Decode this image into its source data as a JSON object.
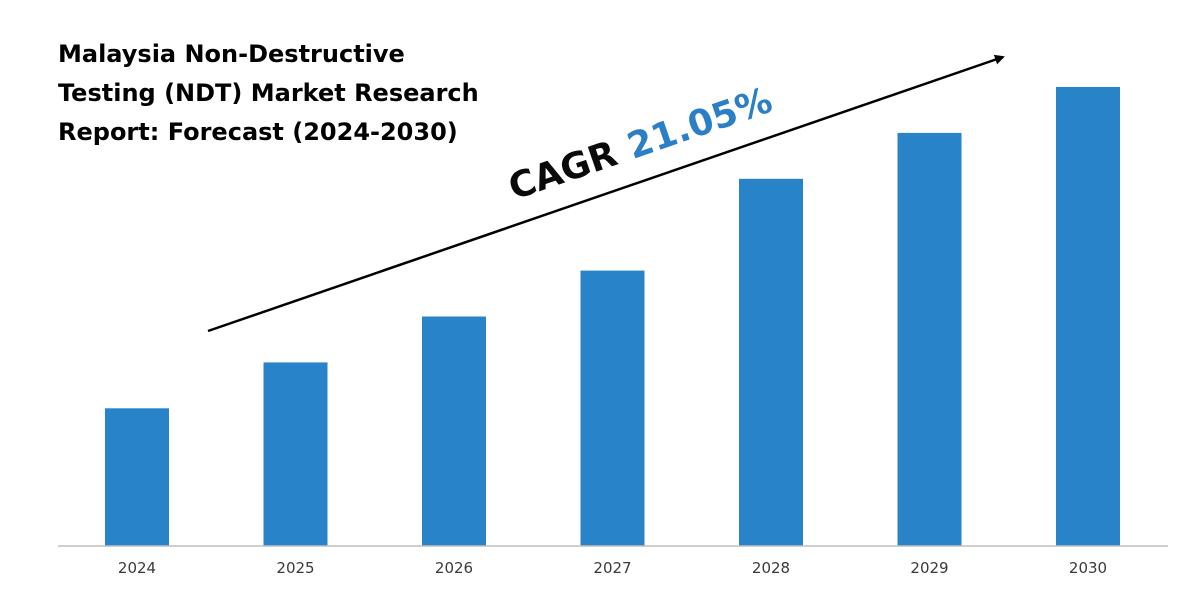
{
  "chart_data": {
    "type": "bar",
    "title_lines": [
      "Malaysia Non-Destructive",
      "Testing (NDT) Market Research",
      "Report: Forecast (2024-2030)"
    ],
    "categories": [
      "2024",
      "2025",
      "2026",
      "2027",
      "2028",
      "2029",
      "2030"
    ],
    "values": [
      30,
      40,
      50,
      60,
      80,
      90,
      100
    ],
    "ylim": [
      0,
      100
    ],
    "xlabel": "",
    "ylabel": "",
    "grid": false,
    "legend": "none",
    "annotation": {
      "prefix": "CAGR",
      "value": "21.05%"
    },
    "colors": {
      "bar": "#2883c8",
      "annotation_prefix": "#0a0a0a",
      "annotation_value": "#2a7fc6",
      "axis": "#bfbfbf",
      "arrow": "#000000"
    }
  }
}
